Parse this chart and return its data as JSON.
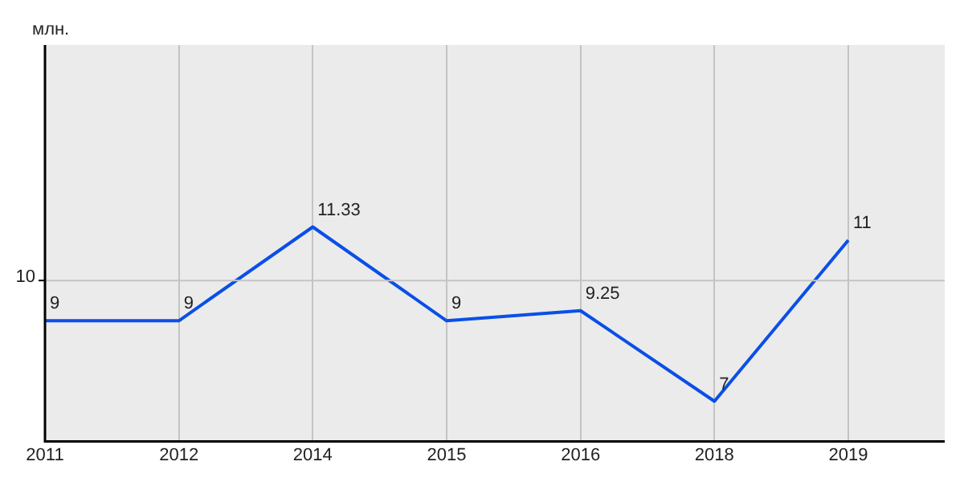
{
  "chart_data": {
    "type": "line",
    "ylabel": "млн.",
    "categories": [
      "2011",
      "2012",
      "2014",
      "2015",
      "2016",
      "2018",
      "2019"
    ],
    "series": [
      {
        "color": "#0a4fe6",
        "values": [
          9,
          9,
          11.33,
          9,
          9.25,
          7,
          11
        ]
      }
    ],
    "ylim": [
      6,
      15.85
    ],
    "ref_lines": [
      {
        "axis": "y",
        "value": 10,
        "label": "10"
      }
    ],
    "grid": "x",
    "data_labels": true,
    "marker": "none",
    "line_style": "solid"
  }
}
